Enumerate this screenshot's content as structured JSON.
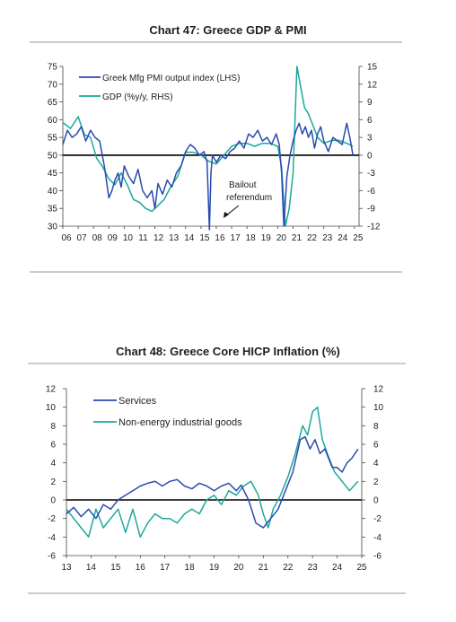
{
  "chart_data": [
    {
      "type": "line",
      "title": "Chart 47: Greece GDP & PMI",
      "x_ticks": [
        "06",
        "07",
        "08",
        "09",
        "10",
        "11",
        "12",
        "13",
        "14",
        "15",
        "16",
        "17",
        "18",
        "19",
        "20",
        "21",
        "22",
        "23",
        "24",
        "25"
      ],
      "ylim_left": [
        30,
        75
      ],
      "yticks_left": [
        75,
        70,
        65,
        60,
        55,
        50,
        45,
        40,
        35,
        30
      ],
      "ylim_right": [
        -12,
        15
      ],
      "yticks_right": [
        15,
        12,
        9,
        6,
        3,
        0,
        -3,
        -6,
        -9,
        -12
      ],
      "annotation": [
        "Bailout",
        "referendum"
      ],
      "series": [
        {
          "name": "Greek Mfg PMI output index (LHS)",
          "axis": "left",
          "color": "#2a4ab0",
          "x": [
            2006.0,
            2006.3,
            2006.6,
            2006.9,
            2007.2,
            2007.5,
            2007.8,
            2008.1,
            2008.4,
            2008.7,
            2009.0,
            2009.2,
            2009.4,
            2009.6,
            2009.8,
            2010.0,
            2010.3,
            2010.6,
            2010.9,
            2011.2,
            2011.5,
            2011.8,
            2012.0,
            2012.2,
            2012.5,
            2012.8,
            2013.1,
            2013.4,
            2013.7,
            2014.0,
            2014.3,
            2014.6,
            2014.9,
            2015.2,
            2015.4,
            2015.55,
            2015.65,
            2015.75,
            2016.0,
            2016.3,
            2016.6,
            2016.9,
            2017.2,
            2017.5,
            2017.8,
            2018.1,
            2018.4,
            2018.7,
            2019.0,
            2019.3,
            2019.6,
            2019.9,
            2020.1,
            2020.25,
            2020.4,
            2020.6,
            2020.8,
            2021.0,
            2021.2,
            2021.4,
            2021.6,
            2021.8,
            2022.0,
            2022.2,
            2022.4,
            2022.6,
            2022.8,
            2023.0,
            2023.3,
            2023.6,
            2023.9,
            2024.2,
            2024.5,
            2024.7,
            2024.9
          ],
          "values": [
            53,
            57,
            55,
            56,
            58,
            54,
            57,
            55,
            54,
            47,
            38,
            40,
            43,
            45,
            41,
            47,
            44,
            42,
            46,
            40,
            38,
            40,
            35,
            42,
            39,
            43,
            41,
            45,
            47,
            51,
            53,
            52,
            50,
            51,
            48,
            29,
            45,
            50,
            48,
            50,
            49,
            51,
            52,
            54,
            52,
            56,
            55,
            57,
            54,
            55,
            53,
            56,
            53,
            45,
            30,
            44,
            50,
            54,
            57,
            59,
            56,
            58,
            55,
            57,
            52,
            56,
            58,
            54,
            51,
            55,
            54,
            53,
            59,
            55,
            50
          ]
        },
        {
          "name": "GDP (%y/y, RHS)",
          "axis": "right",
          "color": "#1aa89c",
          "x": [
            2006.0,
            2006.5,
            2007.0,
            2007.4,
            2007.8,
            2008.2,
            2008.6,
            2009.0,
            2009.4,
            2009.8,
            2010.2,
            2010.6,
            2011.0,
            2011.4,
            2011.8,
            2012.2,
            2012.6,
            2013.0,
            2013.5,
            2014.0,
            2014.5,
            2015.0,
            2015.5,
            2016.0,
            2016.5,
            2017.0,
            2017.5,
            2018.0,
            2018.5,
            2019.0,
            2019.5,
            2020.0,
            2020.25,
            2020.5,
            2020.75,
            2021.0,
            2021.25,
            2021.5,
            2021.75,
            2022.0,
            2022.3,
            2022.6,
            2023.0,
            2023.5,
            2024.0,
            2024.5,
            2024.9
          ],
          "values": [
            5.5,
            4.5,
            6.5,
            3.5,
            3.0,
            -0.5,
            -2.0,
            -4.0,
            -5.0,
            -3.0,
            -5.0,
            -7.5,
            -8.0,
            -9.0,
            -9.5,
            -8.5,
            -7.5,
            -5.5,
            -3.5,
            0.5,
            0.5,
            0.0,
            -1.0,
            -1.5,
            0.0,
            1.5,
            2.0,
            2.0,
            1.5,
            2.0,
            2.0,
            1.5,
            -2.0,
            -12.0,
            -9.0,
            -3.0,
            15.0,
            11.5,
            8.0,
            7.0,
            5.0,
            3.0,
            2.0,
            2.5,
            2.5,
            2.0,
            1.5
          ]
        }
      ]
    },
    {
      "type": "line",
      "title": "Chart 48: Greece Core HICP Inflation (%)",
      "x_ticks": [
        "13",
        "14",
        "15",
        "16",
        "17",
        "18",
        "19",
        "20",
        "21",
        "22",
        "23",
        "24",
        "25"
      ],
      "ylim": [
        -6,
        12
      ],
      "yticks": [
        12,
        10,
        8,
        6,
        4,
        2,
        0,
        -2,
        -4,
        -6
      ],
      "series": [
        {
          "name": "Services",
          "color": "#2a4ab0",
          "x": [
            2013.0,
            2013.3,
            2013.6,
            2013.9,
            2014.2,
            2014.5,
            2014.8,
            2015.1,
            2015.4,
            2015.7,
            2016.0,
            2016.3,
            2016.6,
            2016.9,
            2017.2,
            2017.5,
            2017.8,
            2018.1,
            2018.4,
            2018.7,
            2019.0,
            2019.3,
            2019.6,
            2019.9,
            2020.1,
            2020.4,
            2020.7,
            2021.0,
            2021.3,
            2021.6,
            2021.9,
            2022.2,
            2022.5,
            2022.7,
            2022.9,
            2023.1,
            2023.3,
            2023.5,
            2023.8,
            2024.0,
            2024.2,
            2024.4,
            2024.6,
            2024.85
          ],
          "values": [
            -1.5,
            -0.8,
            -1.8,
            -1.0,
            -2.0,
            -0.5,
            -1.0,
            0.0,
            0.5,
            1.0,
            1.5,
            1.8,
            2.0,
            1.5,
            2.0,
            2.2,
            1.5,
            1.2,
            1.8,
            1.5,
            1.0,
            1.5,
            1.8,
            1.0,
            1.6,
            0.0,
            -2.5,
            -3.0,
            -2.0,
            -1.0,
            1.0,
            3.0,
            6.5,
            6.8,
            5.5,
            6.5,
            5.0,
            5.5,
            3.5,
            3.5,
            3.0,
            4.0,
            4.5,
            5.5
          ]
        },
        {
          "name": "Non-energy industrial goods",
          "color": "#1aa89c",
          "x": [
            2013.0,
            2013.3,
            2013.6,
            2013.9,
            2014.2,
            2014.5,
            2014.8,
            2015.1,
            2015.4,
            2015.7,
            2016.0,
            2016.3,
            2016.6,
            2016.9,
            2017.2,
            2017.5,
            2017.8,
            2018.1,
            2018.4,
            2018.7,
            2019.0,
            2019.3,
            2019.6,
            2019.9,
            2020.2,
            2020.5,
            2020.8,
            2021.0,
            2021.2,
            2021.4,
            2021.7,
            2022.0,
            2022.3,
            2022.6,
            2022.8,
            2023.0,
            2023.2,
            2023.4,
            2023.6,
            2023.9,
            2024.2,
            2024.5,
            2024.85
          ],
          "values": [
            -1.0,
            -2.0,
            -3.0,
            -4.0,
            -1.0,
            -3.0,
            -2.0,
            -1.0,
            -3.5,
            -1.0,
            -4.0,
            -2.5,
            -1.5,
            -2.0,
            -2.0,
            -2.5,
            -1.5,
            -1.0,
            -1.5,
            0.0,
            0.5,
            -0.5,
            1.0,
            0.5,
            1.5,
            2.0,
            0.5,
            -1.5,
            -3.0,
            -1.0,
            0.5,
            2.5,
            5.0,
            8.0,
            7.0,
            9.5,
            10.0,
            6.5,
            5.0,
            3.0,
            2.0,
            1.0,
            2.0
          ]
        }
      ]
    }
  ]
}
